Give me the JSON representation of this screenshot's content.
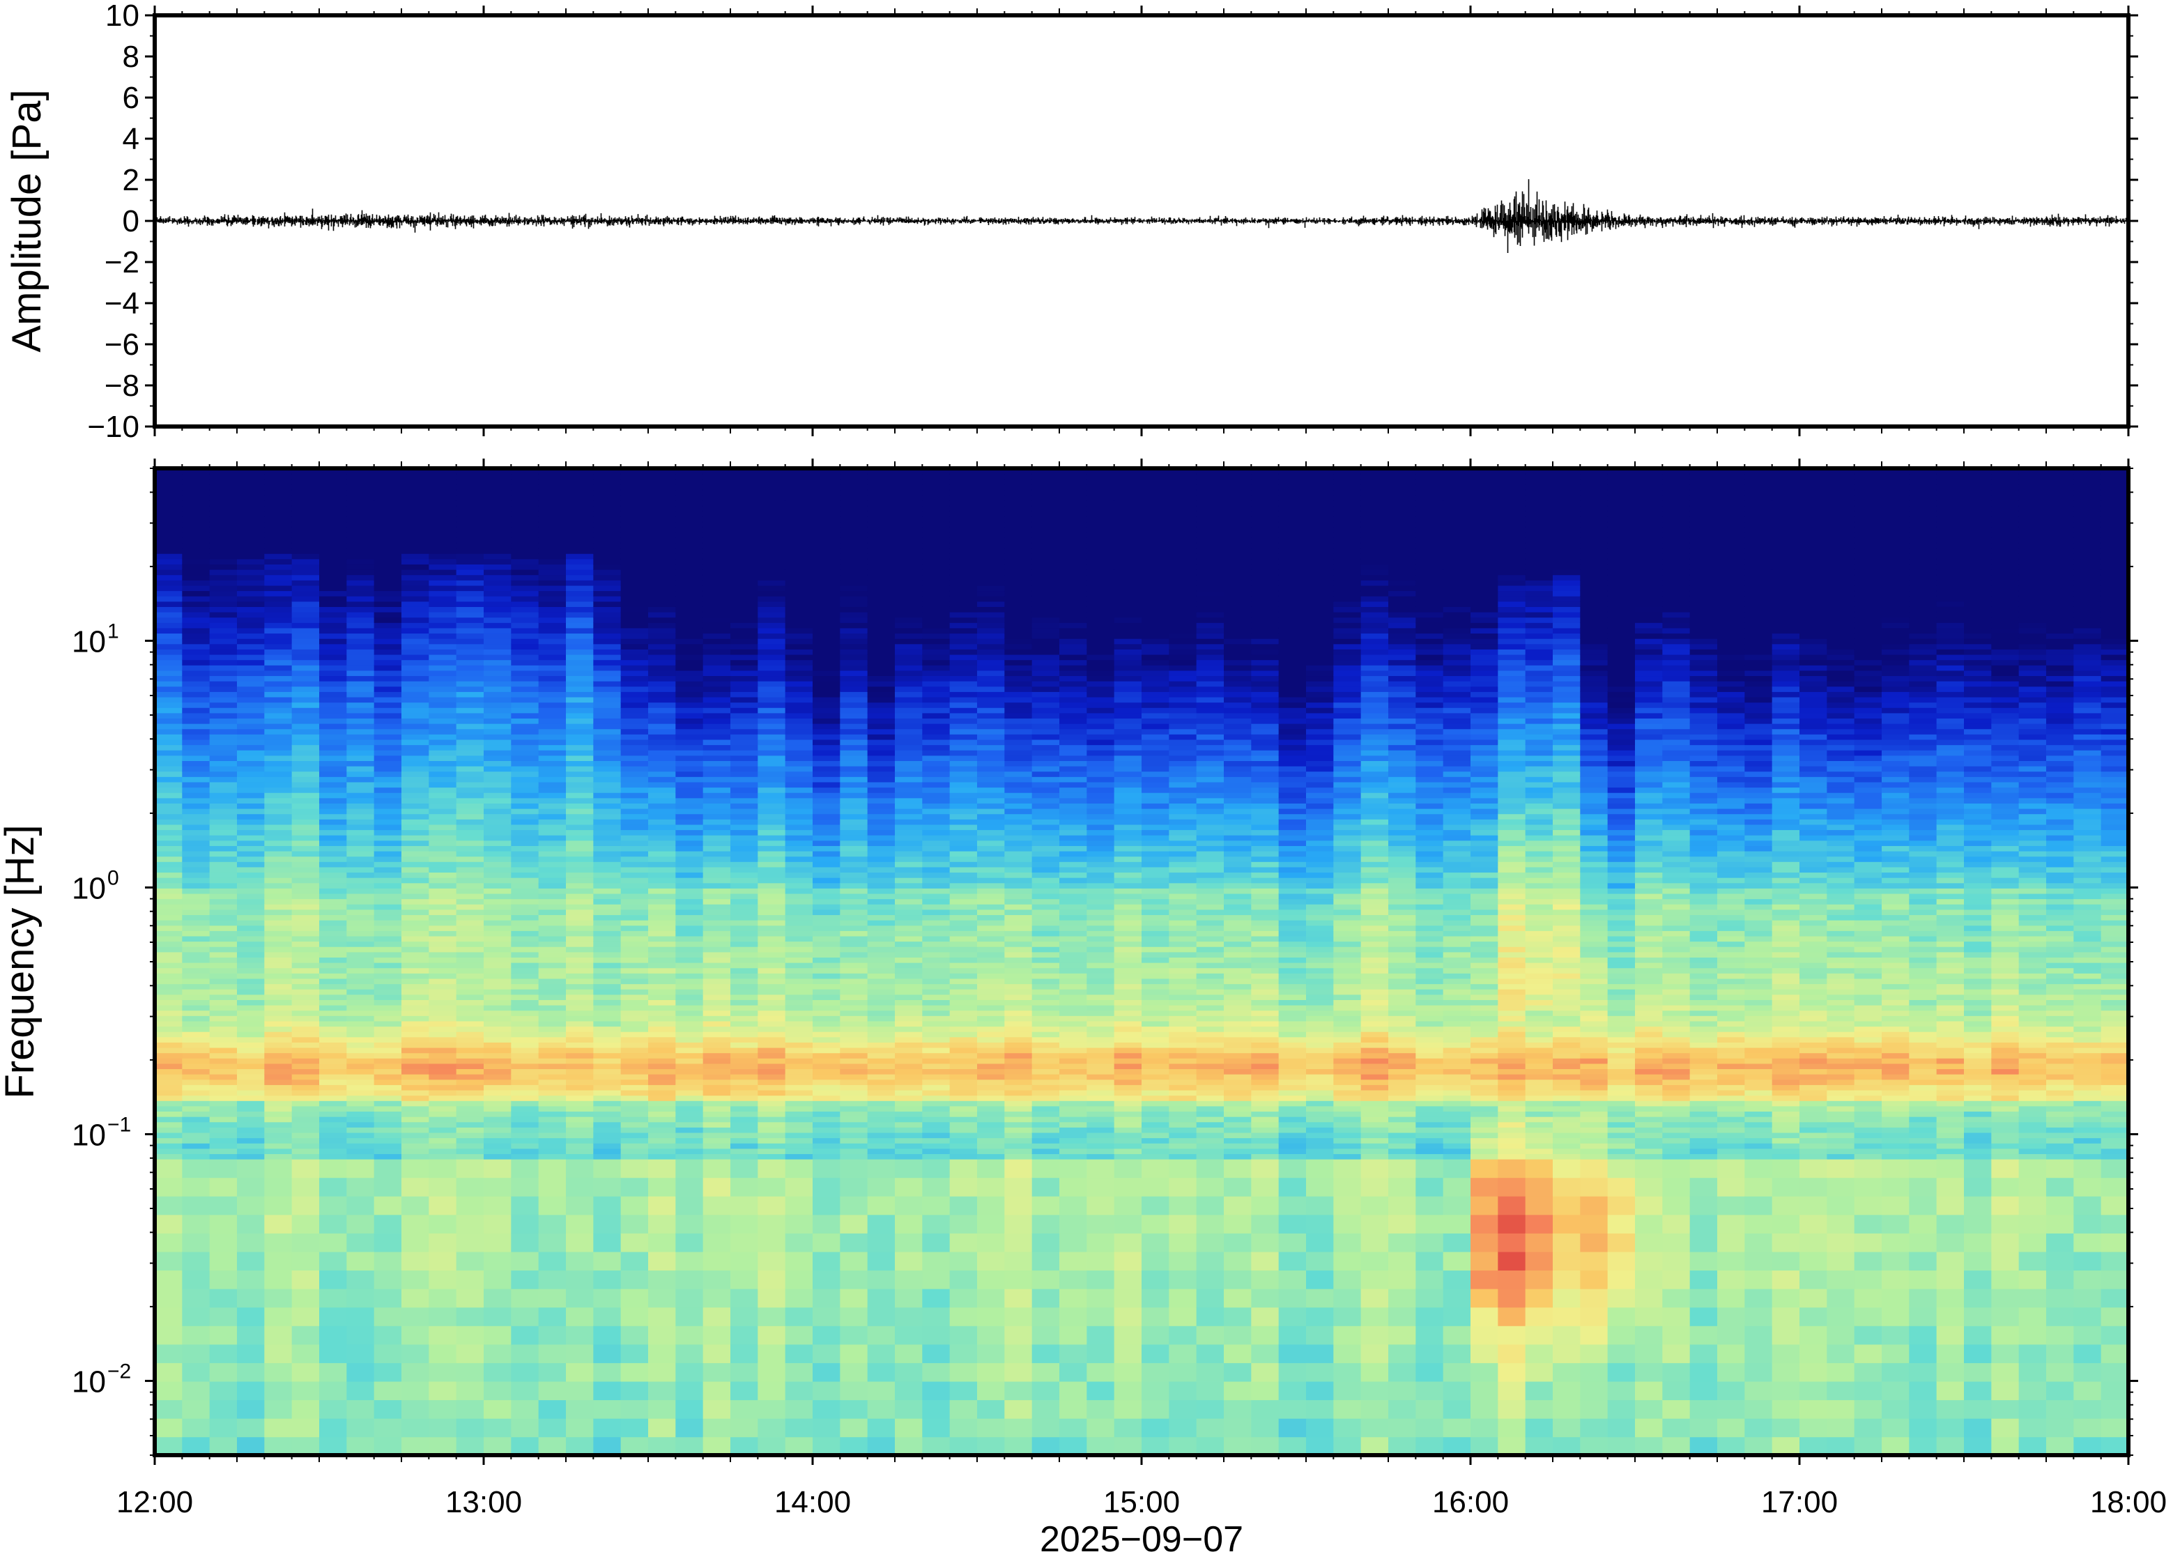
{
  "chart_data": [
    {
      "type": "line",
      "ylabel": "Amplitude [Pa]",
      "ylim": [
        -10,
        10
      ],
      "yticks": [
        -10,
        -8,
        -6,
        -4,
        -2,
        0,
        2,
        4,
        6,
        8,
        10
      ],
      "ytick_labels": [
        "−10",
        "−8",
        "−6",
        "−4",
        "−2",
        "0",
        "2",
        "4",
        "6",
        "8",
        "10"
      ],
      "xlim": [
        "12:00",
        "18:00"
      ],
      "series": [
        {
          "description_of_trace": "waveform",
          "x_time": [
            "12:00",
            "12:45",
            "13:30",
            "14:30",
            "15:30",
            "16:00",
            "16:05",
            "16:08",
            "16:12",
            "16:15",
            "16:20",
            "16:30",
            "17:00",
            "18:00"
          ],
          "amplitude_envelope": [
            0.15,
            0.25,
            0.15,
            0.12,
            0.12,
            0.15,
            0.6,
            1.0,
            0.8,
            0.7,
            0.5,
            0.2,
            0.15,
            0.15
          ]
        }
      ],
      "grid": false
    },
    {
      "type": "heatmap",
      "ylabel": "Frequency [Hz]",
      "yscale": "log",
      "ylim": [
        0.005,
        50
      ],
      "yticks": [
        0.01,
        0.1,
        1,
        10
      ],
      "ytick_labels": [
        [
          "10",
          "−2"
        ],
        [
          "10",
          "−1"
        ],
        [
          "10",
          "0"
        ],
        [
          "10",
          "1"
        ]
      ],
      "xlim": [
        "12:00",
        "18:00"
      ],
      "xticks": [
        "12:00",
        "13:00",
        "14:00",
        "15:00",
        "16:00",
        "17:00",
        "18:00"
      ],
      "xlabel": "2025−09−07",
      "colormap": [
        "#0a0a78",
        "#0a1ec8",
        "#1e64f0",
        "#28aaf5",
        "#64dcd2",
        "#b4f0a0",
        "#f0f08c",
        "#fac864",
        "#f5825a",
        "#dc3c3c"
      ],
      "features": {
        "microseism_band_hz": [
          0.14,
          0.26
        ],
        "event_time": [
          "16:05",
          "16:15"
        ],
        "event_band_hz": [
          0.012,
          0.12
        ],
        "quiet_after": "13:27"
      },
      "grid": false
    }
  ]
}
